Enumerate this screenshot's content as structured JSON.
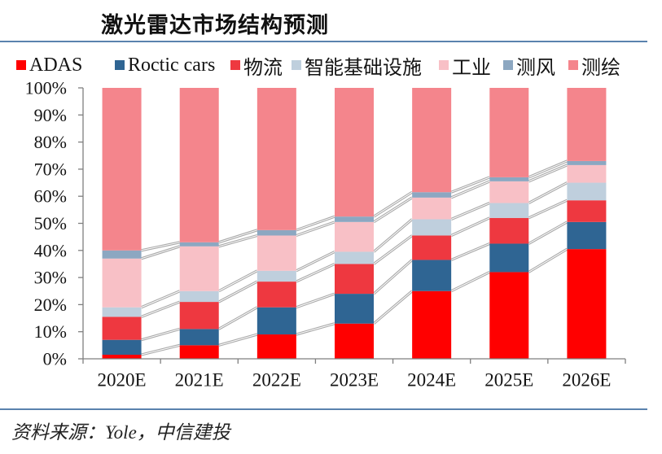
{
  "chart_data": {
    "type": "bar",
    "stacked": true,
    "title": "激光雷达市场结构预测",
    "categories": [
      "2020E",
      "2021E",
      "2022E",
      "2023E",
      "2024E",
      "2025E",
      "2026E"
    ],
    "series": [
      {
        "name": "ADAS",
        "color": "#ff0000",
        "values": [
          1.5,
          5,
          9,
          13,
          25,
          32,
          40.5
        ]
      },
      {
        "name": "Roctic cars",
        "color": "#2f6593",
        "values": [
          5.5,
          6,
          10,
          11,
          11.5,
          10.5,
          10
        ]
      },
      {
        "name": "物流",
        "color": "#ee3840",
        "values": [
          8.5,
          10,
          9.5,
          11,
          9,
          9.5,
          8
        ]
      },
      {
        "name": "智能基础设施",
        "color": "#bfcfdd",
        "values": [
          3.5,
          4,
          4,
          4.5,
          6,
          5.5,
          6.5
        ]
      },
      {
        "name": "工业",
        "color": "#f8c0c6",
        "values": [
          18,
          16.5,
          13,
          11,
          8,
          8,
          6.5
        ]
      },
      {
        "name": "测风",
        "color": "#8ca7c1",
        "values": [
          3,
          1.5,
          2,
          2,
          2,
          1.5,
          1.5
        ]
      },
      {
        "name": "测绘",
        "color": "#f4858c",
        "values": [
          60,
          57,
          52.5,
          47.5,
          38.5,
          33,
          27
        ]
      }
    ],
    "ylim": [
      0,
      100
    ],
    "yticks": [
      0,
      10,
      20,
      30,
      40,
      50,
      60,
      70,
      80,
      90,
      100
    ],
    "ytick_labels": [
      "0%",
      "10%",
      "20%",
      "30%",
      "40%",
      "50%",
      "60%",
      "70%",
      "80%",
      "90%",
      "100%"
    ],
    "legend_position": "top",
    "series_lines": true
  },
  "source": "资料来源：Yole，中信建投",
  "accent_color": "#5a82ae",
  "axis_color": "#7f7f7f",
  "series_line_color": "#a9a9a9"
}
